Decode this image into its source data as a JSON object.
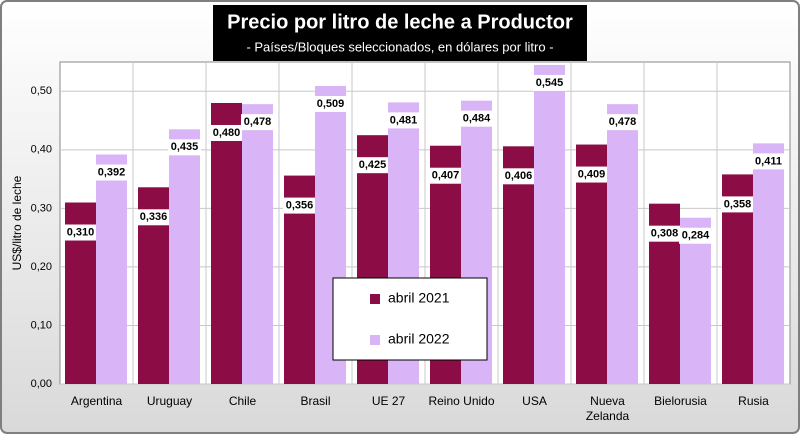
{
  "chart_data": {
    "type": "bar",
    "title": "Precio por litro de leche a Productor",
    "subtitle": "- Países/Bloques seleccionados, en dólares por litro -",
    "y_label": "US$/litro de leche",
    "categories": [
      "Argentina",
      "Uruguay",
      "Chile",
      "Brasil",
      "UE 27",
      "Reino Unido",
      "USA",
      "Nueva\nZelanda",
      "Bielorusia",
      "Rusia"
    ],
    "series": [
      {
        "name": "abril 2021",
        "color": "#8c0c45",
        "values": [
          0.31,
          0.336,
          0.48,
          0.356,
          0.425,
          0.407,
          0.406,
          0.409,
          0.308,
          0.358
        ],
        "value_labels": [
          "0,310",
          "0,336",
          "0,480",
          "0,356",
          "0,425",
          "0,407",
          "0,406",
          "0,409",
          "0,308",
          "0,358"
        ]
      },
      {
        "name": "abril 2022",
        "color": "#d9b4f7",
        "values": [
          0.392,
          0.435,
          0.478,
          0.509,
          0.481,
          0.484,
          0.545,
          0.478,
          0.284,
          0.411
        ],
        "value_labels": [
          "0,392",
          "0,435",
          "0,478",
          "0,509",
          "0,481",
          "0,484",
          "0,545",
          "0,478",
          "0,284",
          "0,411"
        ]
      }
    ],
    "ylim": [
      0,
      0.55
    ],
    "yticks": [
      {
        "value": 0,
        "label": "0,00"
      },
      {
        "value": 0.1,
        "label": "0,10"
      },
      {
        "value": 0.2,
        "label": "0,20"
      },
      {
        "value": 0.3,
        "label": "0,30"
      },
      {
        "value": 0.4,
        "label": "0,40"
      },
      {
        "value": 0.5,
        "label": "0,50"
      }
    ],
    "grid": true
  }
}
